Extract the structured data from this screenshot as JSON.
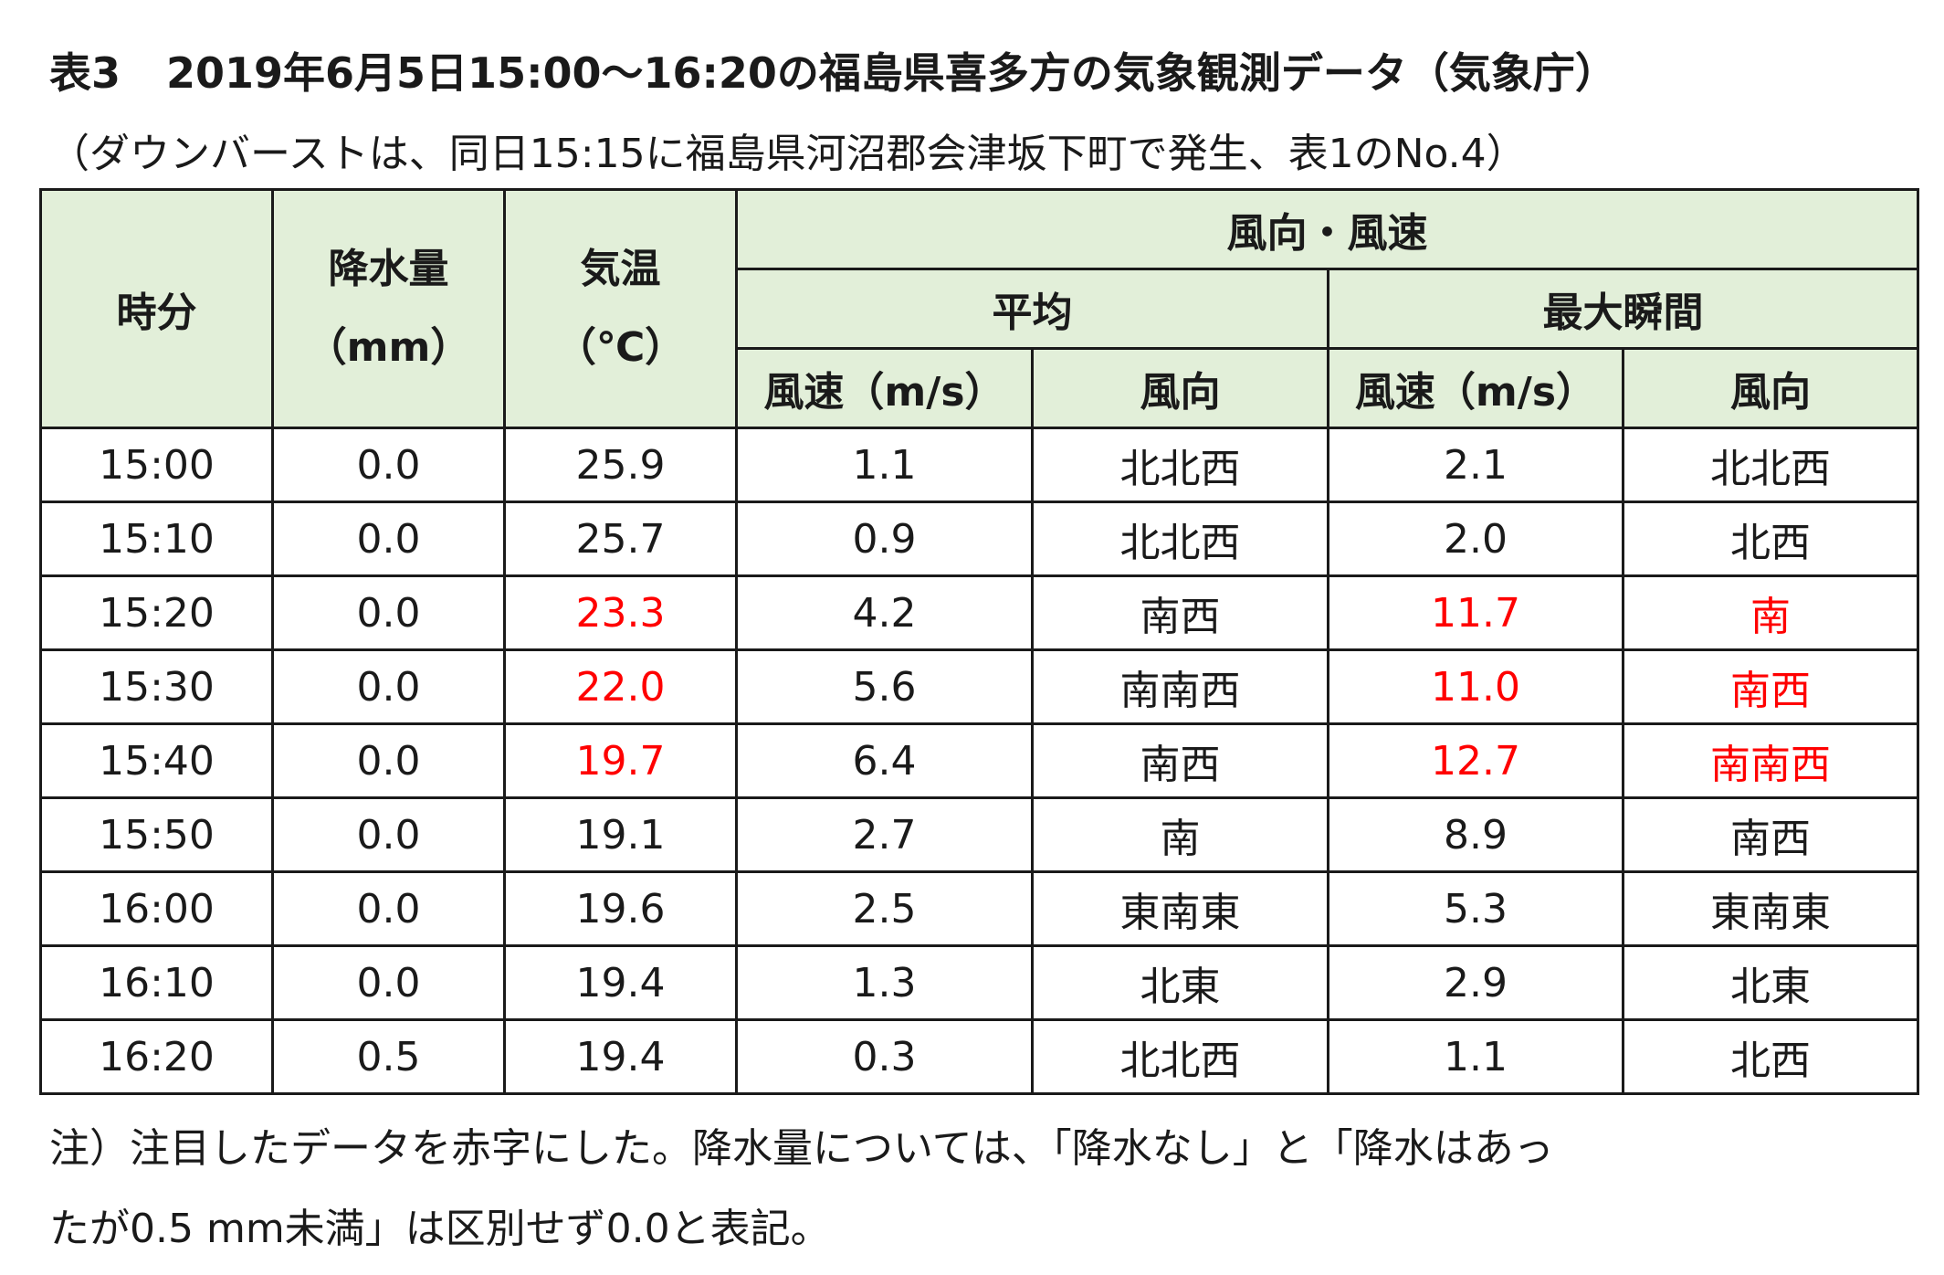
{
  "title": {
    "label": "表3",
    "text": "2019年6月5日15:00〜16:20の福島県喜多方の気象観測データ（気象庁）"
  },
  "subtitle": "（ダウンバーストは、同日15:15に福島県河沼郡会津坂下町で発生、表1のNo.4）",
  "headers": {
    "time": "時分",
    "precip": "降水量",
    "precip_unit": "（mm）",
    "temp": "気温",
    "temp_unit": "（℃）",
    "wind": "風向・風速",
    "average": "平均",
    "max_gust": "最大瞬間",
    "speed": "風速（m/s）",
    "direction": "風向"
  },
  "rows": [
    {
      "time": "15:00",
      "precip": "0.0",
      "temp": "25.9",
      "avg_speed": "1.1",
      "avg_dir": "北北西",
      "max_speed": "2.1",
      "max_dir": "北北西"
    },
    {
      "time": "15:10",
      "precip": "0.0",
      "temp": "25.7",
      "avg_speed": "0.9",
      "avg_dir": "北北西",
      "max_speed": "2.0",
      "max_dir": "北西"
    },
    {
      "time": "15:20",
      "precip": "0.0",
      "temp": "23.3",
      "avg_speed": "4.2",
      "avg_dir": "南西",
      "max_speed": "11.7",
      "max_dir": "南"
    },
    {
      "time": "15:30",
      "precip": "0.0",
      "temp": "22.0",
      "avg_speed": "5.6",
      "avg_dir": "南南西",
      "max_speed": "11.0",
      "max_dir": "南西"
    },
    {
      "time": "15:40",
      "precip": "0.0",
      "temp": "19.7",
      "avg_speed": "6.4",
      "avg_dir": "南西",
      "max_speed": "12.7",
      "max_dir": "南南西"
    },
    {
      "time": "15:50",
      "precip": "0.0",
      "temp": "19.1",
      "avg_speed": "2.7",
      "avg_dir": "南",
      "max_speed": "8.9",
      "max_dir": "南西"
    },
    {
      "time": "16:00",
      "precip": "0.0",
      "temp": "19.6",
      "avg_speed": "2.5",
      "avg_dir": "東南東",
      "max_speed": "5.3",
      "max_dir": "東南東"
    },
    {
      "time": "16:10",
      "precip": "0.0",
      "temp": "19.4",
      "avg_speed": "1.3",
      "avg_dir": "北東",
      "max_speed": "2.9",
      "max_dir": "北東"
    },
    {
      "time": "16:20",
      "precip": "0.5",
      "temp": "19.4",
      "avg_speed": "0.3",
      "avg_dir": "北北西",
      "max_speed": "1.1",
      "max_dir": "北西"
    }
  ],
  "highlight_color": "#ff0000",
  "header_bg": "#e2efd9",
  "note": {
    "line1": "注）注目したデータを赤字にした。降水量については、「降水なし」と「降水はあっ",
    "line2": "たが0.5 mm未満」は区別せず0.0と表記。"
  }
}
